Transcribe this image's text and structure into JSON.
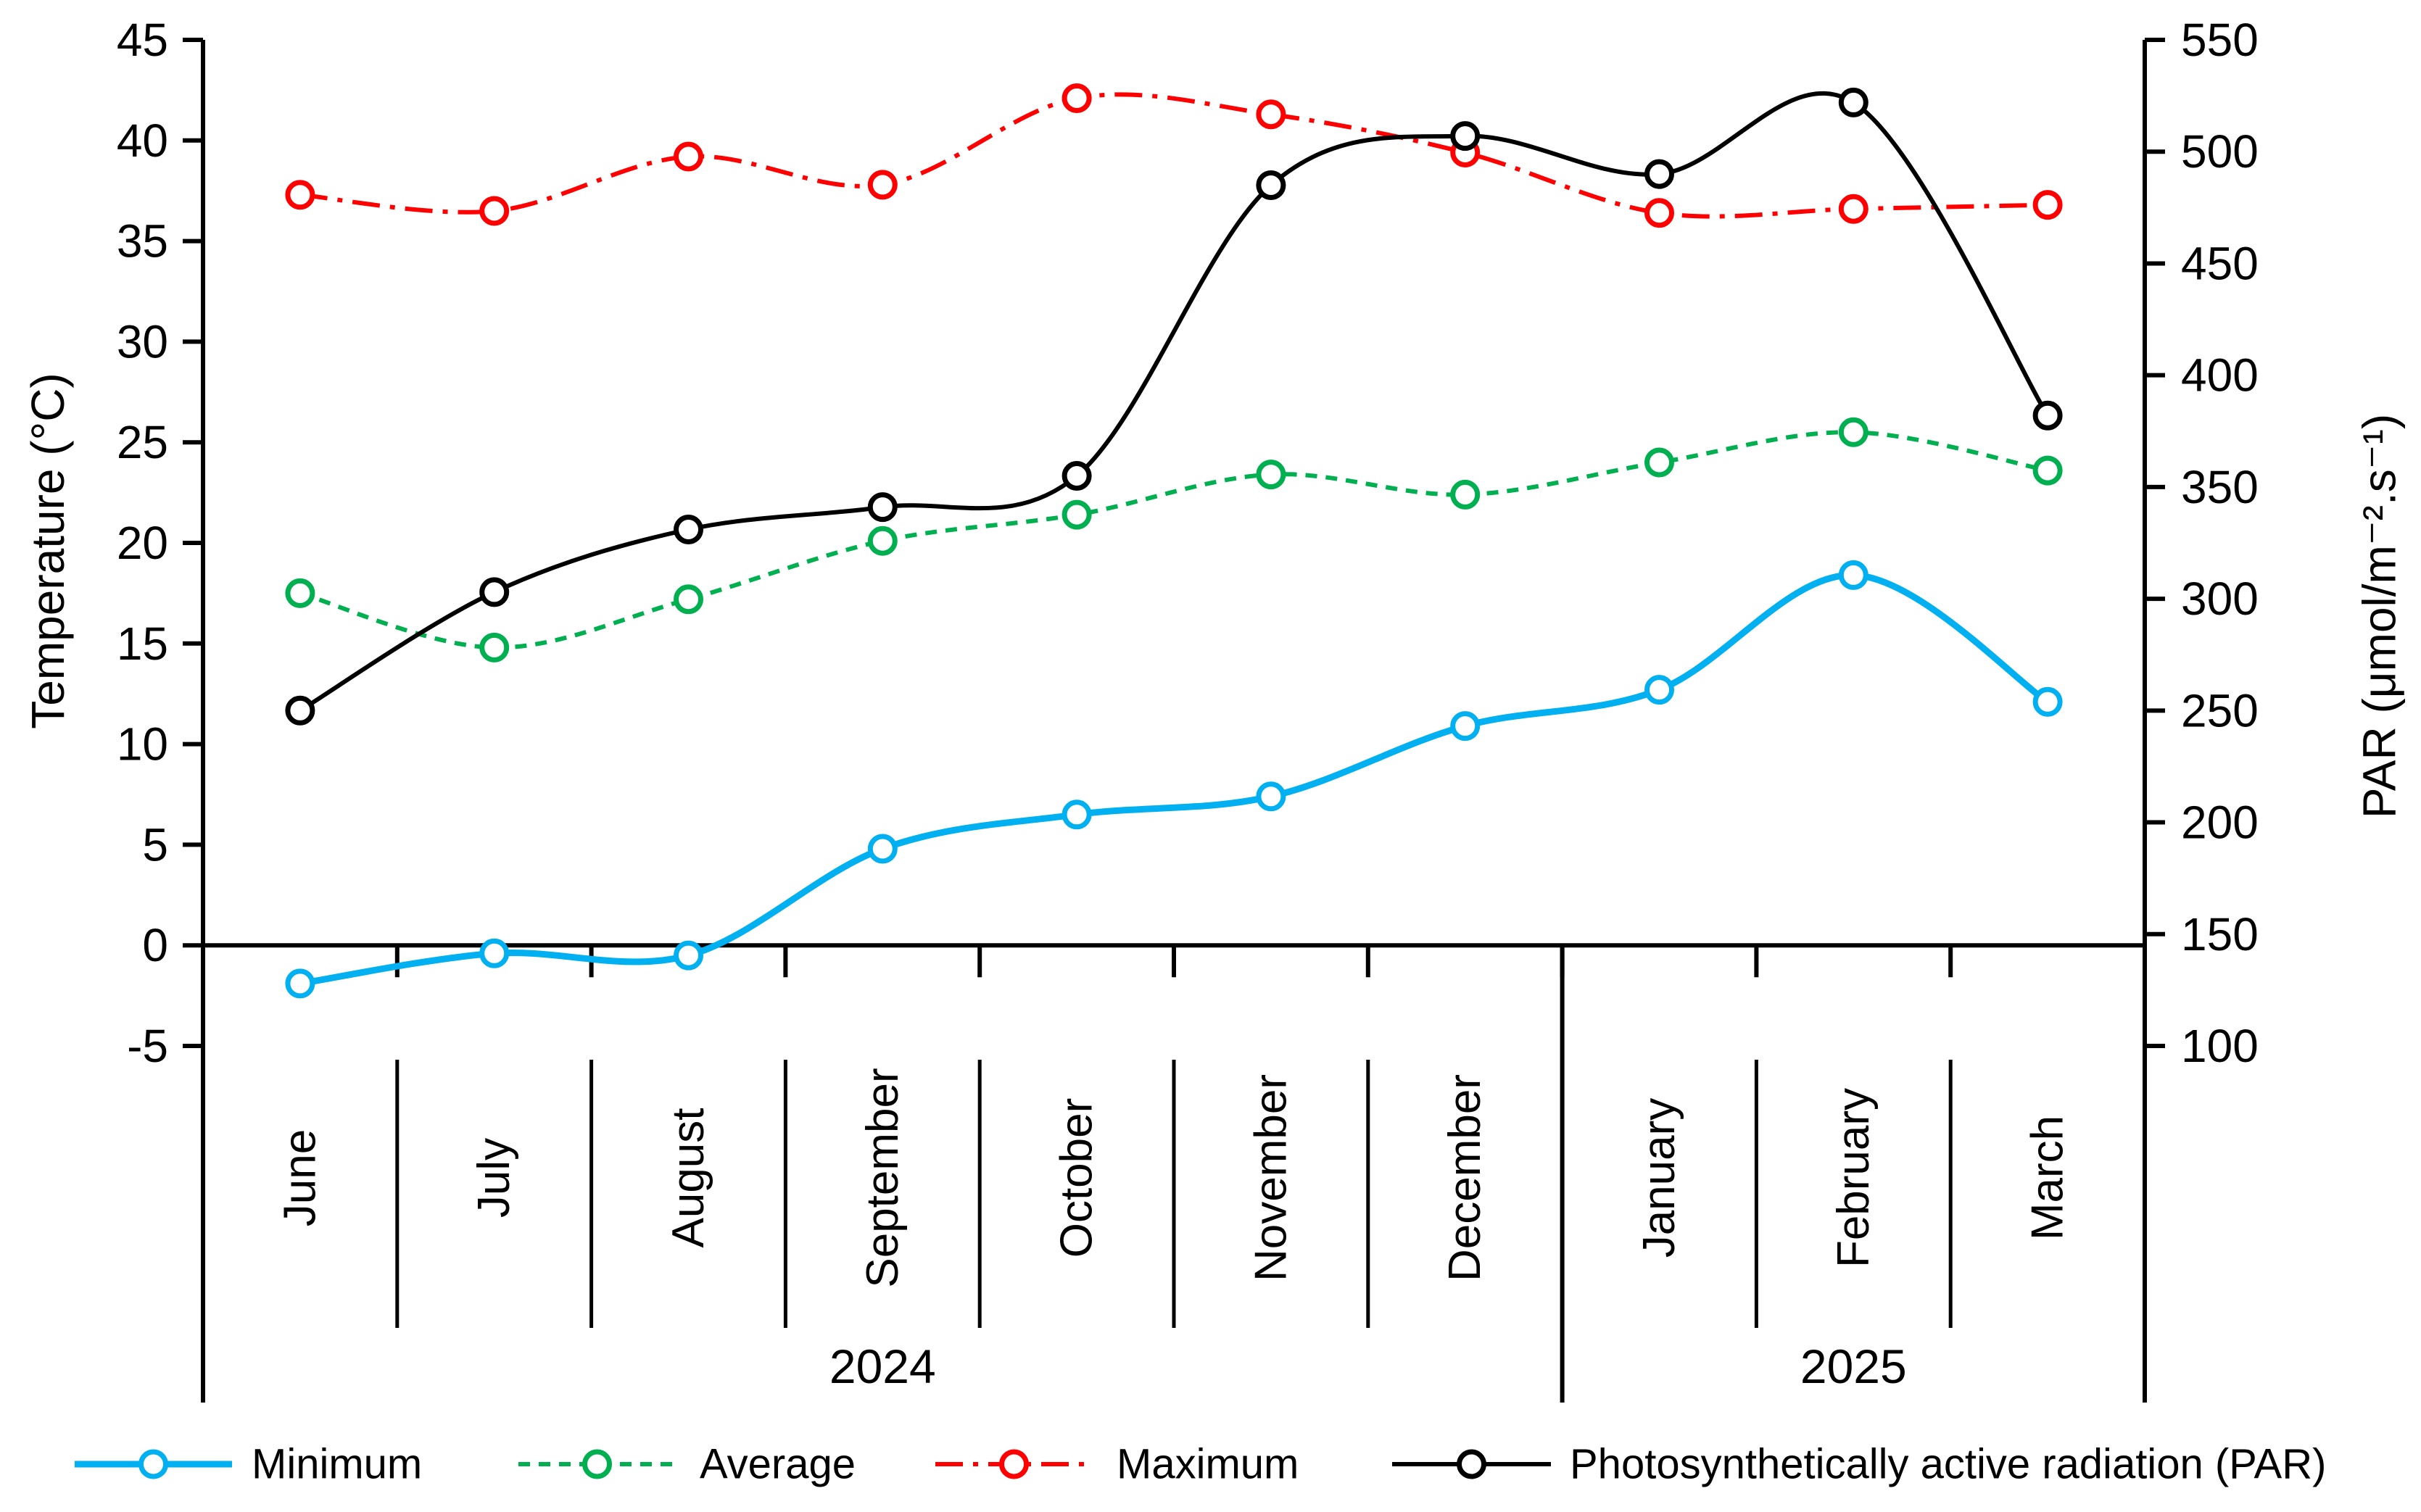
{
  "chart_data": {
    "type": "line",
    "title": "",
    "categories": [
      "June",
      "July",
      "August",
      "September",
      "October",
      "November",
      "December",
      "January",
      "February",
      "March"
    ],
    "series": [
      {
        "name": "Minimum",
        "color": "#00B0F0",
        "line_style": "solid",
        "marker": "open-circle",
        "axis": "left",
        "values": [
          -1.9,
          -0.4,
          -0.5,
          4.8,
          6.5,
          7.4,
          10.9,
          12.7,
          18.4,
          12.1
        ]
      },
      {
        "name": "Average",
        "color": "#00B050",
        "line_style": "dashed",
        "marker": "open-circle",
        "axis": "left",
        "values": [
          17.5,
          14.8,
          17.2,
          20.1,
          21.4,
          23.4,
          22.4,
          24.0,
          25.5,
          23.6
        ]
      },
      {
        "name": "Maximum",
        "color": "#FF0000",
        "line_style": "dash-dot",
        "marker": "open-circle",
        "axis": "left",
        "values": [
          37.3,
          36.5,
          39.2,
          37.8,
          42.1,
          41.3,
          39.4,
          36.4,
          36.6,
          36.8
        ]
      },
      {
        "name": "Photosynthetically active radiation (PAR)",
        "color": "#000000",
        "line_style": "solid",
        "marker": "open-circle",
        "axis": "right",
        "values": [
          250,
          303,
          331,
          341,
          355,
          485,
          507,
          490,
          522,
          382
        ]
      }
    ],
    "left_axis": {
      "label": "Temperature (°C)",
      "min": -5,
      "max": 45,
      "tick_step": 5,
      "tick_labels": [
        "45",
        "40",
        "35",
        "30",
        "25",
        "20",
        "15",
        "10",
        "5",
        "0",
        "-5"
      ]
    },
    "right_axis": {
      "label": "PAR (μmol/m⁻².s⁻¹)",
      "min": 100,
      "max": 550,
      "tick_step": 50,
      "tick_labels": [
        "550",
        "500",
        "450",
        "400",
        "350",
        "300",
        "250",
        "200",
        "150",
        "100"
      ]
    },
    "x_axis": {
      "year_groups": [
        {
          "label": "2024",
          "months": [
            "June",
            "July",
            "August",
            "September",
            "October",
            "November",
            "December"
          ]
        },
        {
          "label": "2025",
          "months": [
            "January",
            "February",
            "March"
          ]
        }
      ]
    },
    "legend": {
      "position": "bottom",
      "entries": [
        "Minimum",
        "Average",
        "Maximum",
        "Photosynthetically active radiation (PAR)"
      ]
    },
    "grid": false,
    "smooth_lines": true,
    "background": "#FFFFFF"
  }
}
